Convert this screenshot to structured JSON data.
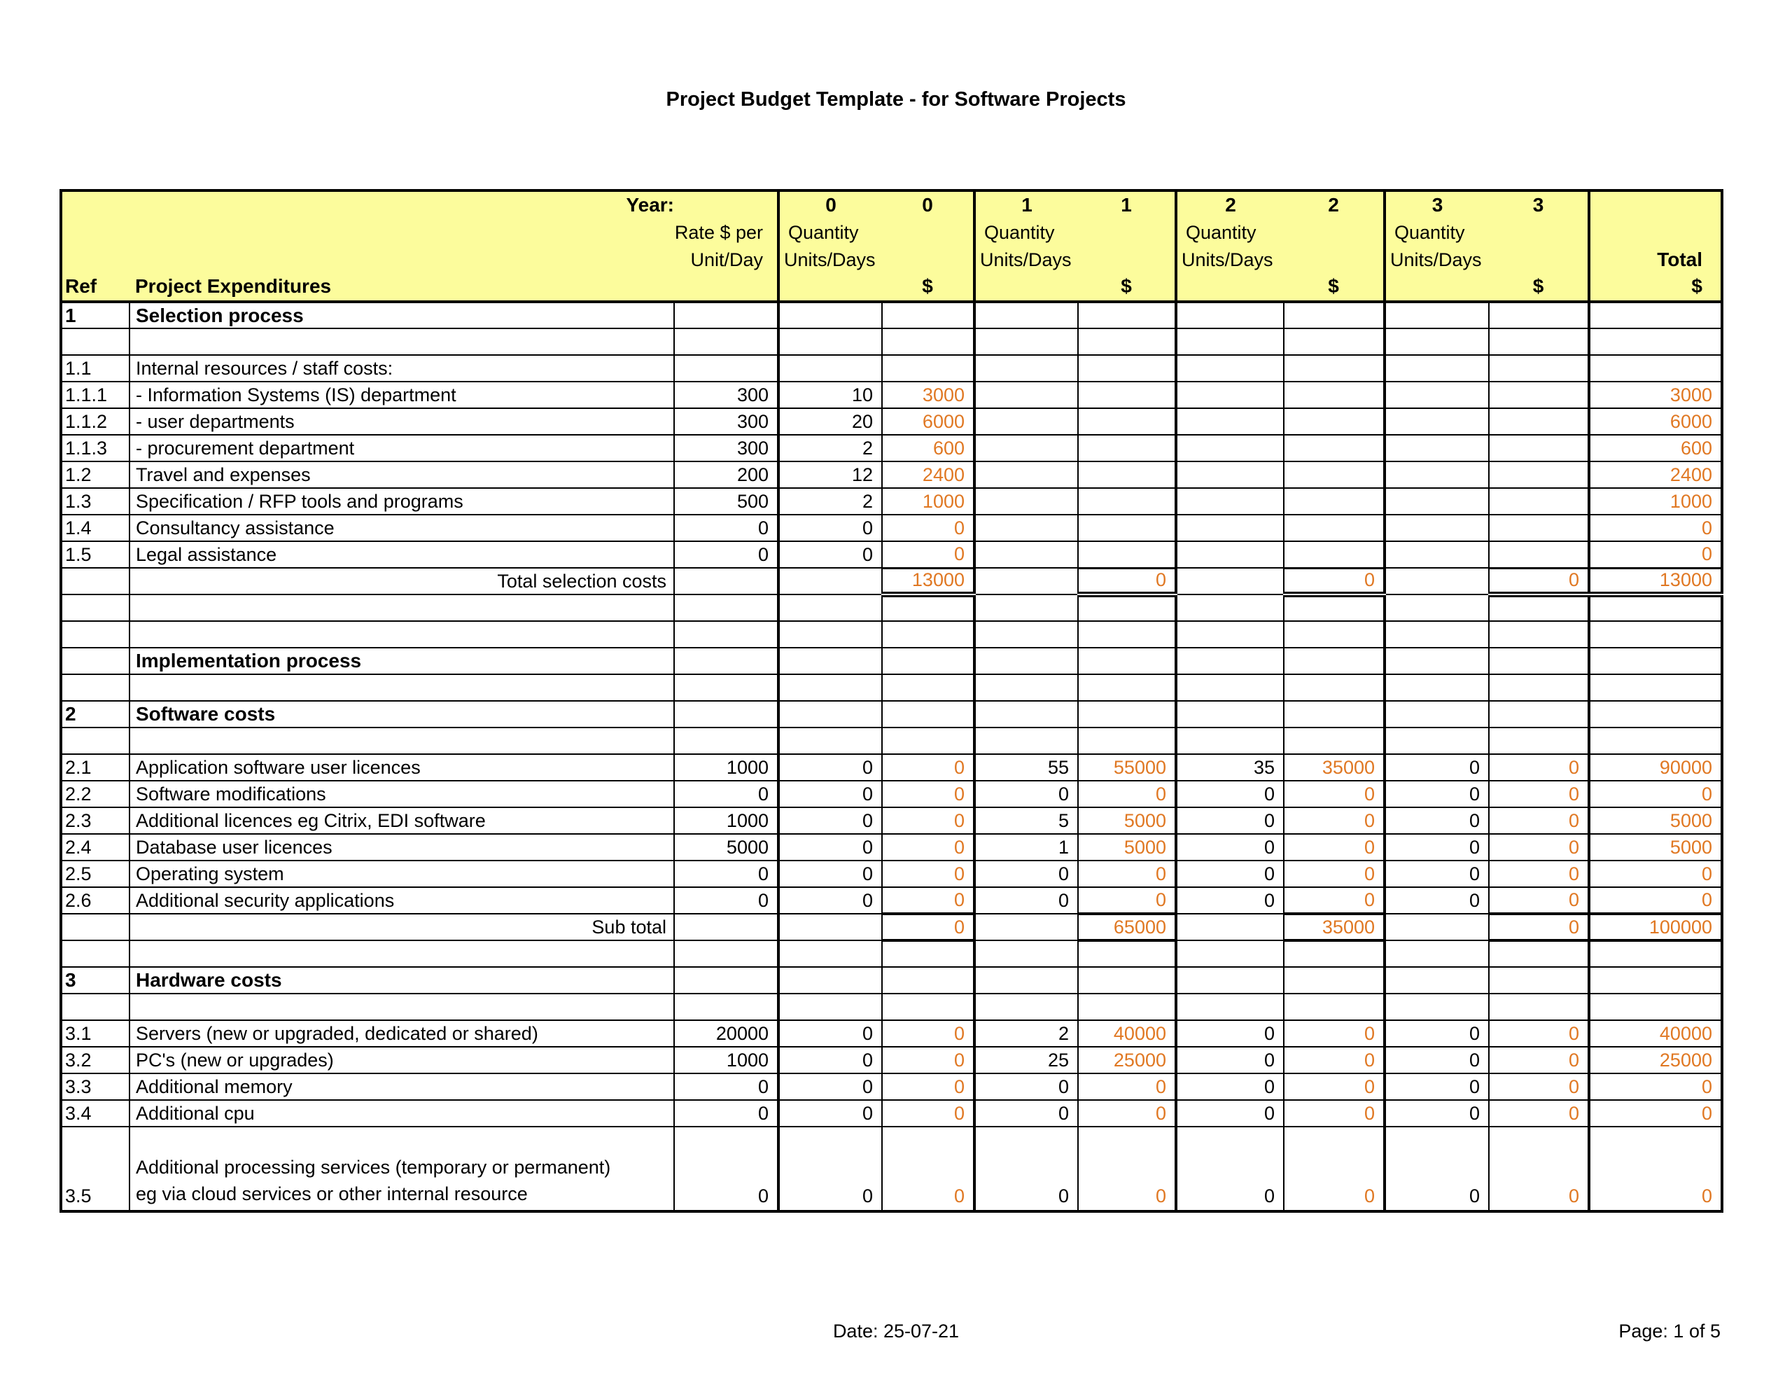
{
  "page": {
    "title": "Project Budget Template - for Software Projects",
    "footer_date": "Date: 25-07-21",
    "footer_page": "Page: 1 of 5"
  },
  "colors": {
    "header_bg": "#FCFC9C",
    "value_orange": "#E07823",
    "grid_black": "#000000"
  },
  "header": {
    "year_label": "Year:",
    "ref": "Ref",
    "expenditures": "Project Expenditures",
    "rate_top": "Rate $ per",
    "rate_bottom": "Unit/Day",
    "quantity": "Quantity",
    "units_days": "Units/Days",
    "dollar": "$",
    "total": "Total",
    "years": [
      "0",
      "1",
      "2",
      "3"
    ]
  },
  "table": {
    "rows": [
      {
        "type": "section",
        "ref": "1",
        "desc": "Selection process",
        "rate": "",
        "q0": "",
        "d0": "",
        "q1": "",
        "d1": "",
        "q2": "",
        "d2": "",
        "q3": "",
        "d3": "",
        "total": ""
      },
      {
        "type": "empty",
        "ref": "",
        "desc": "",
        "rate": "",
        "q0": "",
        "d0": "",
        "q1": "",
        "d1": "",
        "q2": "",
        "d2": "",
        "q3": "",
        "d3": "",
        "total": ""
      },
      {
        "type": "item",
        "ref": "1.1",
        "desc": "Internal resources / staff costs:",
        "rate": "",
        "q0": "",
        "d0": "",
        "q1": "",
        "d1": "",
        "q2": "",
        "d2": "",
        "q3": "",
        "d3": "",
        "total": ""
      },
      {
        "type": "item",
        "ref": "1.1.1",
        "desc": "- Information Systems (IS) department",
        "rate": "300",
        "q0": "10",
        "d0": "3000",
        "q1": "",
        "d1": "",
        "q2": "",
        "d2": "",
        "q3": "",
        "d3": "",
        "total": "3000"
      },
      {
        "type": "item",
        "ref": "1.1.2",
        "desc": "- user departments",
        "rate": "300",
        "q0": "20",
        "d0": "6000",
        "q1": "",
        "d1": "",
        "q2": "",
        "d2": "",
        "q3": "",
        "d3": "",
        "total": "6000"
      },
      {
        "type": "item",
        "ref": "1.1.3",
        "desc": "- procurement department",
        "rate": "300",
        "q0": "2",
        "d0": "600",
        "q1": "",
        "d1": "",
        "q2": "",
        "d2": "",
        "q3": "",
        "d3": "",
        "total": "600"
      },
      {
        "type": "item",
        "ref": "1.2",
        "desc": "Travel and expenses",
        "rate": "200",
        "q0": "12",
        "d0": "2400",
        "q1": "",
        "d1": "",
        "q2": "",
        "d2": "",
        "q3": "",
        "d3": "",
        "total": "2400"
      },
      {
        "type": "item",
        "ref": "1.3",
        "desc": "Specification / RFP tools and programs",
        "rate": "500",
        "q0": "2",
        "d0": "1000",
        "q1": "",
        "d1": "",
        "q2": "",
        "d2": "",
        "q3": "",
        "d3": "",
        "total": "1000"
      },
      {
        "type": "item",
        "ref": "1.4",
        "desc": "Consultancy assistance",
        "rate": "0",
        "q0": "0",
        "d0": "0",
        "q1": "",
        "d1": "",
        "q2": "",
        "d2": "",
        "q3": "",
        "d3": "",
        "total": "0"
      },
      {
        "type": "item",
        "ref": "1.5",
        "desc": "Legal assistance",
        "rate": "0",
        "q0": "0",
        "d0": "0",
        "q1": "",
        "d1": "",
        "q2": "",
        "d2": "",
        "q3": "",
        "d3": "",
        "total": "0"
      },
      {
        "type": "total",
        "ref": "",
        "desc": "Total selection costs",
        "rate": "",
        "q0": "",
        "d0": "13000",
        "q1": "",
        "d1": "0",
        "q2": "",
        "d2": "0",
        "q3": "",
        "d3": "0",
        "total": "13000"
      },
      {
        "type": "empty",
        "ref": "",
        "desc": "",
        "rate": "",
        "q0": "",
        "d0": "",
        "q1": "",
        "d1": "",
        "q2": "",
        "d2": "",
        "q3": "",
        "d3": "",
        "total": ""
      },
      {
        "type": "empty",
        "ref": "",
        "desc": "",
        "rate": "",
        "q0": "",
        "d0": "",
        "q1": "",
        "d1": "",
        "q2": "",
        "d2": "",
        "q3": "",
        "d3": "",
        "total": ""
      },
      {
        "type": "section",
        "ref": "",
        "desc": "Implementation process",
        "rate": "",
        "q0": "",
        "d0": "",
        "q1": "",
        "d1": "",
        "q2": "",
        "d2": "",
        "q3": "",
        "d3": "",
        "total": ""
      },
      {
        "type": "empty",
        "ref": "",
        "desc": "",
        "rate": "",
        "q0": "",
        "d0": "",
        "q1": "",
        "d1": "",
        "q2": "",
        "d2": "",
        "q3": "",
        "d3": "",
        "total": ""
      },
      {
        "type": "section",
        "ref": "2",
        "desc": "Software costs",
        "rate": "",
        "q0": "",
        "d0": "",
        "q1": "",
        "d1": "",
        "q2": "",
        "d2": "",
        "q3": "",
        "d3": "",
        "total": ""
      },
      {
        "type": "empty",
        "ref": "",
        "desc": "",
        "rate": "",
        "q0": "",
        "d0": "",
        "q1": "",
        "d1": "",
        "q2": "",
        "d2": "",
        "q3": "",
        "d3": "",
        "total": ""
      },
      {
        "type": "item",
        "ref": "2.1",
        "desc": "Application software user licences",
        "rate": "1000",
        "q0": "0",
        "d0": "0",
        "q1": "55",
        "d1": "55000",
        "q2": "35",
        "d2": "35000",
        "q3": "0",
        "d3": "0",
        "total": "90000"
      },
      {
        "type": "item",
        "ref": "2.2",
        "desc": "Software modifications",
        "rate": "0",
        "q0": "0",
        "d0": "0",
        "q1": "0",
        "d1": "0",
        "q2": "0",
        "d2": "0",
        "q3": "0",
        "d3": "0",
        "total": "0"
      },
      {
        "type": "item",
        "ref": "2.3",
        "desc": "Additional licences eg Citrix, EDI software",
        "rate": "1000",
        "q0": "0",
        "d0": "0",
        "q1": "5",
        "d1": "5000",
        "q2": "0",
        "d2": "0",
        "q3": "0",
        "d3": "0",
        "total": "5000"
      },
      {
        "type": "item",
        "ref": "2.4",
        "desc": "Database user licences",
        "rate": "5000",
        "q0": "0",
        "d0": "0",
        "q1": "1",
        "d1": "5000",
        "q2": "0",
        "d2": "0",
        "q3": "0",
        "d3": "0",
        "total": "5000"
      },
      {
        "type": "item",
        "ref": "2.5",
        "desc": "Operating system",
        "rate": "0",
        "q0": "0",
        "d0": "0",
        "q1": "0",
        "d1": "0",
        "q2": "0",
        "d2": "0",
        "q3": "0",
        "d3": "0",
        "total": "0"
      },
      {
        "type": "item",
        "ref": "2.6",
        "desc": "Additional security applications",
        "rate": "0",
        "q0": "0",
        "d0": "0",
        "q1": "0",
        "d1": "0",
        "q2": "0",
        "d2": "0",
        "q3": "0",
        "d3": "0",
        "total": "0"
      },
      {
        "type": "subtotal",
        "ref": "",
        "desc": "Sub total",
        "rate": "",
        "q0": "",
        "d0": "0",
        "q1": "",
        "d1": "65000",
        "q2": "",
        "d2": "35000",
        "q3": "",
        "d3": "0",
        "total": "100000"
      },
      {
        "type": "empty",
        "ref": "",
        "desc": "",
        "rate": "",
        "q0": "",
        "d0": "",
        "q1": "",
        "d1": "",
        "q2": "",
        "d2": "",
        "q3": "",
        "d3": "",
        "total": ""
      },
      {
        "type": "section",
        "ref": "3",
        "desc": "Hardware costs",
        "rate": "",
        "q0": "",
        "d0": "",
        "q1": "",
        "d1": "",
        "q2": "",
        "d2": "",
        "q3": "",
        "d3": "",
        "total": ""
      },
      {
        "type": "empty",
        "ref": "",
        "desc": "",
        "rate": "",
        "q0": "",
        "d0": "",
        "q1": "",
        "d1": "",
        "q2": "",
        "d2": "",
        "q3": "",
        "d3": "",
        "total": ""
      },
      {
        "type": "item",
        "ref": "3.1",
        "desc": "Servers (new or upgraded, dedicated or shared)",
        "rate": "20000",
        "q0": "0",
        "d0": "0",
        "q1": "2",
        "d1": "40000",
        "q2": "0",
        "d2": "0",
        "q3": "0",
        "d3": "0",
        "total": "40000"
      },
      {
        "type": "item",
        "ref": "3.2",
        "desc": "PC's (new or upgrades)",
        "rate": "1000",
        "q0": "0",
        "d0": "0",
        "q1": "25",
        "d1": "25000",
        "q2": "0",
        "d2": "0",
        "q3": "0",
        "d3": "0",
        "total": "25000"
      },
      {
        "type": "item",
        "ref": "3.3",
        "desc": "Additional memory",
        "rate": "0",
        "q0": "0",
        "d0": "0",
        "q1": "0",
        "d1": "0",
        "q2": "0",
        "d2": "0",
        "q3": "0",
        "d3": "0",
        "total": "0"
      },
      {
        "type": "item",
        "ref": "3.4",
        "desc": "Additional cpu",
        "rate": "0",
        "q0": "0",
        "d0": "0",
        "q1": "0",
        "d1": "0",
        "q2": "0",
        "d2": "0",
        "q3": "0",
        "d3": "0",
        "total": "0"
      },
      {
        "type": "tall",
        "ref": "3.5",
        "desc": "Additional processing services (temporary or permanent)",
        "desc2": "eg via cloud services or other internal resource",
        "rate": "0",
        "q0": "0",
        "d0": "0",
        "q1": "0",
        "d1": "0",
        "q2": "0",
        "d2": "0",
        "q3": "0",
        "d3": "0",
        "total": "0"
      }
    ]
  }
}
